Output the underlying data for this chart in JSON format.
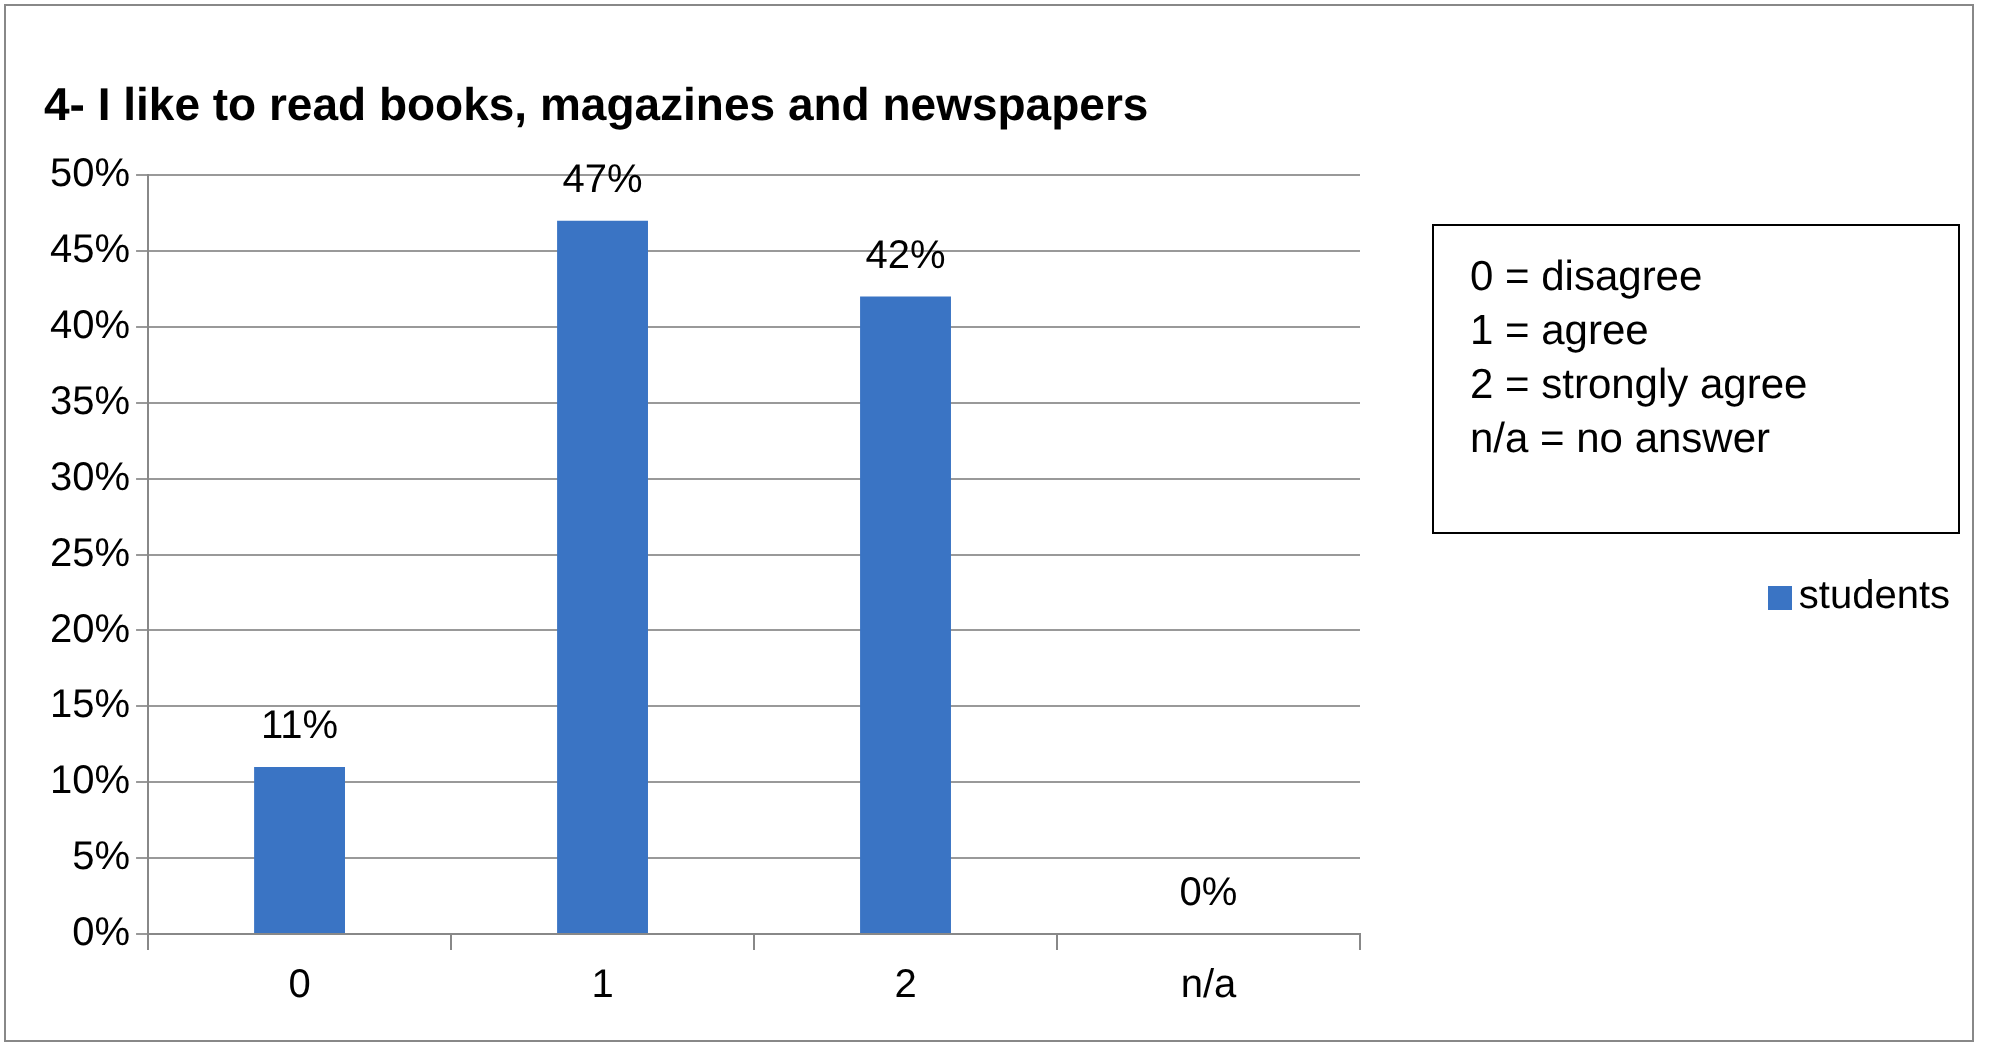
{
  "chart_data": {
    "type": "bar",
    "title": "4- I like to read books, magazines and newspapers",
    "categories": [
      "0",
      "1",
      "2",
      "n/a"
    ],
    "series": [
      {
        "name": "students",
        "color": "#3a74c4",
        "values": [
          11,
          47,
          42,
          0
        ],
        "value_labels": [
          "11%",
          "47%",
          "42%",
          "0%"
        ]
      }
    ],
    "ylim": [
      0,
      50
    ],
    "yticks": [
      {
        "value": 0,
        "label": "0%"
      },
      {
        "value": 5,
        "label": "5%"
      },
      {
        "value": 10,
        "label": "10%"
      },
      {
        "value": 15,
        "label": "15%"
      },
      {
        "value": 20,
        "label": "20%"
      },
      {
        "value": 25,
        "label": "25%"
      },
      {
        "value": 30,
        "label": "30%"
      },
      {
        "value": 35,
        "label": "35%"
      },
      {
        "value": 40,
        "label": "40%"
      },
      {
        "value": 45,
        "label": "45%"
      },
      {
        "value": 50,
        "label": "50%"
      }
    ],
    "grid": "y",
    "legend": "right",
    "annotations": [
      "0 = disagree",
      "1 = agree",
      "2 = strongly agree",
      "n/a = no answer"
    ]
  }
}
